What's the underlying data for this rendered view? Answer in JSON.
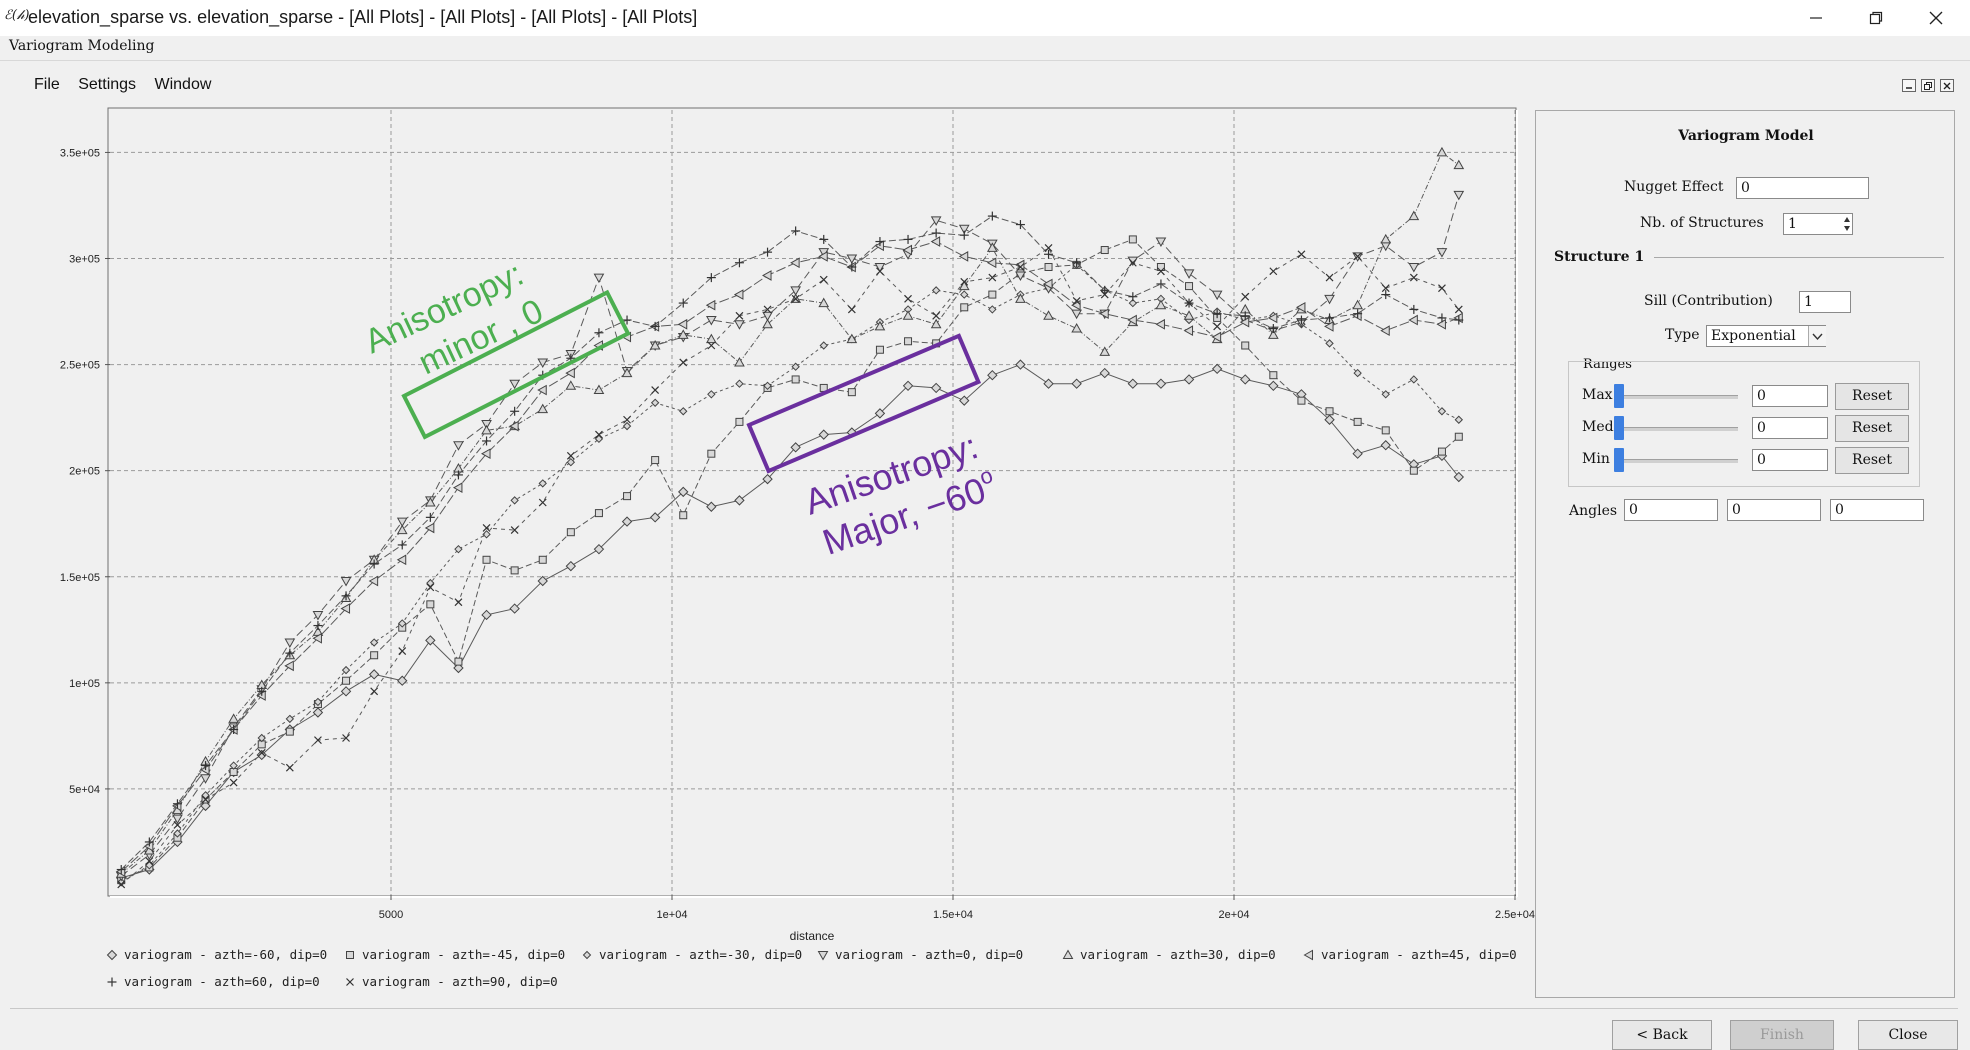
{
  "window": {
    "app_icon": "ℰ(𝒽)",
    "title": "elevation_sparse vs. elevation_sparse - [All Plots] - [All Plots] - [All Plots] - [All Plots]",
    "subtitle": "Variogram Modeling",
    "controls": [
      "minimize-icon",
      "restore-icon",
      "close-icon"
    ]
  },
  "menu": {
    "items": [
      "File",
      "Settings",
      "Window"
    ]
  },
  "annotations": {
    "minor": {
      "line1": "Anisotropy:",
      "line2": "minor , 0",
      "color": "#4caf50"
    },
    "major": {
      "line1": "Anisotropy:",
      "line2": "Major, −60",
      "degree_sign": "o",
      "color": "#6a2f9e"
    }
  },
  "chart_data": {
    "type": "scatter",
    "xlabel": "distance",
    "ylabel": "",
    "xlim": [
      0,
      25000
    ],
    "ylim": [
      0,
      370000
    ],
    "xticks": [
      5000,
      10000,
      15000,
      20000,
      25000
    ],
    "xtick_labels": [
      "5000",
      "1e+04",
      "1.5e+04",
      "2e+04",
      "2.5e+04"
    ],
    "yticks": [
      50000,
      100000,
      150000,
      200000,
      250000,
      300000,
      350000
    ],
    "ytick_labels": [
      "5e+04",
      "1e+05",
      "1.5e+05",
      "2e+05",
      "2.5e+05",
      "3e+05",
      "3.5e+05"
    ],
    "grid": true,
    "legend_position": "bottom",
    "series": [
      {
        "name": "variogram - azth=-60, dip=0",
        "marker": "diamond",
        "x": [
          200,
          700,
          1200,
          1700,
          2200,
          2700,
          3200,
          3700,
          4200,
          4700,
          5200,
          5700,
          6200,
          6700,
          7200,
          7700,
          8200,
          8700,
          9200,
          9700,
          10200,
          10700,
          11200,
          11700,
          12200,
          12700,
          13200,
          13700,
          14200,
          14700,
          15200,
          15700,
          16200,
          16700,
          17200,
          17700,
          18200,
          18700,
          19200,
          19700,
          20200,
          20700,
          21200,
          21700,
          22200,
          22700,
          23200,
          23700,
          24000
        ],
        "y": [
          8000,
          12000,
          25000,
          42000,
          58000,
          66000,
          78000,
          86000,
          96000,
          104000,
          101000,
          120000,
          107000,
          132000,
          135000,
          148000,
          155000,
          163000,
          176000,
          178000,
          190000,
          183000,
          186000,
          196000,
          211000,
          217000,
          218000,
          227000,
          240000,
          239000,
          233000,
          245000,
          250000,
          241000,
          241000,
          246000,
          241000,
          241000,
          243000,
          248000,
          243000,
          240000,
          236000,
          224000,
          208000,
          212000,
          203000,
          207000,
          197000
        ]
      },
      {
        "name": "variogram - azth=-45, dip=0",
        "marker": "square",
        "x": [
          200,
          700,
          1200,
          1700,
          2200,
          2700,
          3200,
          3700,
          4200,
          4700,
          5200,
          5700,
          6200,
          6700,
          7200,
          7700,
          8200,
          8700,
          9200,
          9700,
          10200,
          10700,
          11200,
          11700,
          12200,
          12700,
          13200,
          13700,
          14200,
          14700,
          15200,
          15700,
          16200,
          16700,
          17200,
          17700,
          18200,
          18700,
          19200,
          19700,
          20200,
          20700,
          21200,
          21700,
          22200,
          22700,
          23200,
          23700,
          24000
        ],
        "y": [
          7000,
          13000,
          27000,
          45000,
          58000,
          71000,
          77000,
          90000,
          101000,
          113000,
          126000,
          137000,
          110000,
          158000,
          153000,
          158000,
          171000,
          180000,
          188000,
          205000,
          179000,
          208000,
          223000,
          239000,
          243000,
          239000,
          237000,
          257000,
          261000,
          260000,
          277000,
          283000,
          293000,
          296000,
          297000,
          304000,
          309000,
          296000,
          287000,
          272000,
          259000,
          245000,
          233000,
          228000,
          223000,
          219000,
          200000,
          209000,
          216000
        ]
      },
      {
        "name": "variogram - azth=-30, dip=0",
        "marker": "diamond-small",
        "x": [
          200,
          700,
          1200,
          1700,
          2200,
          2700,
          3200,
          3700,
          4200,
          4700,
          5200,
          5700,
          6200,
          6700,
          7200,
          7700,
          8200,
          8700,
          9200,
          9700,
          10200,
          10700,
          11200,
          11700,
          12200,
          12700,
          13200,
          13700,
          14200,
          14700,
          15200,
          15700,
          16200,
          16700,
          17200,
          17700,
          18200,
          18700,
          19200,
          19700,
          20200,
          20700,
          21200,
          21700,
          22200,
          22700,
          23200,
          23700,
          24000
        ],
        "y": [
          6000,
          14000,
          29000,
          47000,
          61000,
          74000,
          83000,
          91000,
          106000,
          119000,
          128000,
          147000,
          163000,
          170000,
          186000,
          194000,
          204000,
          215000,
          221000,
          232000,
          228000,
          236000,
          241000,
          240000,
          249000,
          259000,
          262000,
          270000,
          276000,
          285000,
          283000,
          276000,
          283000,
          286000,
          297000,
          285000,
          279000,
          281000,
          271000,
          275000,
          271000,
          273000,
          269000,
          260000,
          246000,
          236000,
          243000,
          228000,
          224000
        ]
      },
      {
        "name": "variogram - azth=0, dip=0",
        "marker": "triangle-down",
        "x": [
          200,
          700,
          1200,
          1700,
          2200,
          2700,
          3200,
          3700,
          4200,
          4700,
          5200,
          5700,
          6200,
          6700,
          7200,
          7700,
          8200,
          8700,
          9200,
          9700,
          10200,
          10700,
          11200,
          11700,
          12200,
          12700,
          13200,
          13700,
          14200,
          14700,
          15200,
          15700,
          16200,
          16700,
          17200,
          17700,
          18200,
          18700,
          19200,
          19700,
          20200,
          20700,
          21200,
          21700,
          22200,
          22700,
          23200,
          23700,
          24000
        ],
        "y": [
          9000,
          19000,
          36000,
          55000,
          79000,
          97000,
          119000,
          132000,
          148000,
          158000,
          176000,
          186000,
          212000,
          222000,
          241000,
          251000,
          255000,
          291000,
          247000,
          259000,
          263000,
          271000,
          269000,
          273000,
          285000,
          303000,
          300000,
          296000,
          302000,
          318000,
          314000,
          307000,
          292000,
          286000,
          274000,
          274000,
          299000,
          308000,
          293000,
          283000,
          271000,
          266000,
          270000,
          281000,
          301000,
          306000,
          296000,
          303000,
          330000
        ]
      },
      {
        "name": "variogram - azth=30, dip=0",
        "marker": "triangle",
        "x": [
          200,
          700,
          1200,
          1700,
          2200,
          2700,
          3200,
          3700,
          4200,
          4700,
          5200,
          5700,
          6200,
          6700,
          7200,
          7700,
          8200,
          8700,
          9200,
          9700,
          10200,
          10700,
          11200,
          11700,
          12200,
          12700,
          13200,
          13700,
          14200,
          14700,
          15200,
          15700,
          16200,
          16700,
          17200,
          17700,
          18200,
          18700,
          19200,
          19700,
          20200,
          20700,
          21200,
          21700,
          22200,
          22700,
          23200,
          23700,
          24000
        ],
        "y": [
          10000,
          21000,
          40000,
          63000,
          83000,
          99000,
          113000,
          124000,
          140000,
          158000,
          172000,
          185000,
          201000,
          219000,
          221000,
          229000,
          240000,
          238000,
          246000,
          259000,
          264000,
          262000,
          251000,
          269000,
          281000,
          279000,
          262000,
          268000,
          273000,
          269000,
          287000,
          305000,
          281000,
          273000,
          267000,
          256000,
          270000,
          278000,
          273000,
          262000,
          276000,
          264000,
          276000,
          271000,
          278000,
          309000,
          320000,
          350000,
          344000
        ]
      },
      {
        "name": "variogram - azth=45, dip=0",
        "marker": "triangle-left",
        "x": [
          200,
          700,
          1200,
          1700,
          2200,
          2700,
          3200,
          3700,
          4200,
          4700,
          5200,
          5700,
          6200,
          6700,
          7200,
          7700,
          8200,
          8700,
          9200,
          9700,
          10200,
          10700,
          11200,
          11700,
          12200,
          12700,
          13200,
          13700,
          14200,
          14700,
          15200,
          15700,
          16200,
          16700,
          17200,
          17700,
          18200,
          18700,
          19200,
          19700,
          20200,
          20700,
          21200,
          21700,
          22200,
          22700,
          23200,
          23700,
          24000
        ],
        "y": [
          11000,
          23000,
          42000,
          59000,
          78000,
          94000,
          108000,
          121000,
          135000,
          148000,
          158000,
          173000,
          192000,
          208000,
          221000,
          238000,
          246000,
          259000,
          263000,
          268000,
          269000,
          278000,
          283000,
          292000,
          298000,
          301000,
          296000,
          306000,
          304000,
          308000,
          301000,
          298000,
          297000,
          288000,
          278000,
          274000,
          271000,
          269000,
          266000,
          263000,
          270000,
          272000,
          277000,
          268000,
          273000,
          266000,
          271000,
          269000,
          272000
        ]
      },
      {
        "name": "variogram - azth=60, dip=0",
        "marker": "plus",
        "x": [
          200,
          700,
          1200,
          1700,
          2200,
          2700,
          3200,
          3700,
          4200,
          4700,
          5200,
          5700,
          6200,
          6700,
          7200,
          7700,
          8200,
          8700,
          9200,
          9700,
          10200,
          10700,
          11200,
          11700,
          12200,
          12700,
          13200,
          13700,
          14200,
          14700,
          15200,
          15700,
          16200,
          16700,
          17200,
          17700,
          18200,
          18700,
          19200,
          19700,
          20200,
          20700,
          21200,
          21700,
          22200,
          22700,
          23200,
          23700,
          24000
        ],
        "y": [
          12000,
          25000,
          43000,
          61000,
          78000,
          96000,
          114000,
          127000,
          141000,
          156000,
          165000,
          178000,
          198000,
          214000,
          228000,
          245000,
          253000,
          265000,
          271000,
          268000,
          279000,
          291000,
          298000,
          303000,
          313000,
          309000,
          296000,
          308000,
          309000,
          312000,
          311000,
          320000,
          316000,
          302000,
          298000,
          285000,
          282000,
          288000,
          279000,
          274000,
          273000,
          267000,
          271000,
          272000,
          274000,
          283000,
          276000,
          272000,
          271000
        ]
      },
      {
        "name": "variogram - azth=90, dip=0",
        "marker": "cross",
        "x": [
          200,
          700,
          1200,
          1700,
          2200,
          2700,
          3200,
          3700,
          4200,
          4700,
          5200,
          5700,
          6200,
          6700,
          7200,
          7700,
          8200,
          8700,
          9200,
          9700,
          10200,
          10700,
          11200,
          11700,
          12200,
          12700,
          13200,
          13700,
          14200,
          14700,
          15200,
          15700,
          16200,
          16700,
          17200,
          17700,
          18200,
          18700,
          19200,
          19700,
          20200,
          20700,
          21200,
          21700,
          22200,
          22700,
          23200,
          23700,
          24000
        ],
        "y": [
          5000,
          16000,
          33000,
          45000,
          53000,
          67000,
          60000,
          73000,
          74000,
          96000,
          115000,
          145000,
          138000,
          173000,
          172000,
          185000,
          207000,
          217000,
          224000,
          238000,
          251000,
          259000,
          273000,
          276000,
          281000,
          290000,
          276000,
          294000,
          281000,
          273000,
          289000,
          291000,
          296000,
          305000,
          280000,
          283000,
          298000,
          294000,
          279000,
          268000,
          282000,
          294000,
          302000,
          291000,
          301000,
          286000,
          291000,
          286000,
          276000
        ]
      }
    ]
  },
  "panel": {
    "title": "Variogram Model",
    "nugget_label": "Nugget Effect",
    "nugget_value": "0",
    "structures_label": "Nb. of Structures",
    "structures_value": "1",
    "structure_header": "Structure 1",
    "sill_label": "Sill (Contribution)",
    "sill_value": "1",
    "type_label": "Type",
    "type_value": "Exponential",
    "ranges_label": "Ranges",
    "ranges": [
      {
        "label": "Max",
        "value": "0",
        "reset": "Reset",
        "level": 0
      },
      {
        "label": "Med",
        "value": "0",
        "reset": "Reset",
        "level": 0
      },
      {
        "label": "Min",
        "value": "0",
        "reset": "Reset",
        "level": 0
      }
    ],
    "angles_label": "Angles",
    "angles": [
      "0",
      "0",
      "0"
    ],
    "accent_color": "#3d7fe0"
  },
  "footer": {
    "back_label": "< Back",
    "back_underline": "B",
    "finish_label": "Finish",
    "finish_underline": "F",
    "close_label": "Close"
  }
}
